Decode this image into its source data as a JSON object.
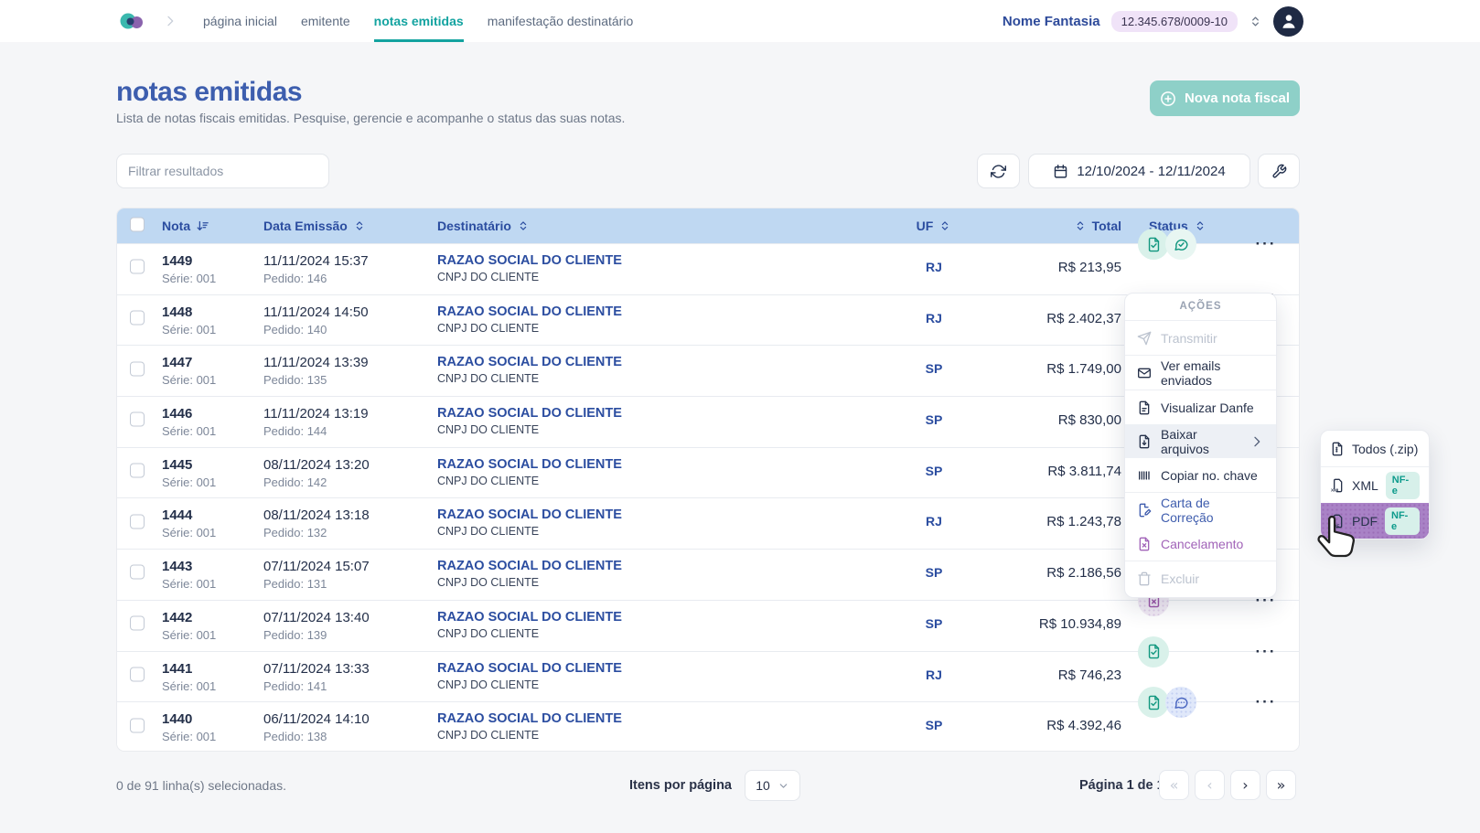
{
  "colors": {
    "accent_teal": "#13a3a0",
    "brand_blue": "#3d5eae",
    "header_blue_bg": "#bfd8f2",
    "status_teal": "#11977f",
    "status_purple": "#9c55a8",
    "submenu_highlight": "#a982c6",
    "new_button_bg": "#8ed0c8"
  },
  "navbar": {
    "links": [
      {
        "label": "página inicial",
        "active": false
      },
      {
        "label": "emitente",
        "active": false
      },
      {
        "label": "notas emitidas",
        "active": true
      },
      {
        "label": "manifestação destinatário",
        "active": false
      }
    ],
    "company_name": "Nome Fantasia",
    "company_cnpj": "12.345.678/0009-10"
  },
  "page": {
    "title": "notas emitidas",
    "subtitle": "Lista de notas fiscais emitidas. Pesquise, gerencie e acompanhe o status das suas notas.",
    "new_button_label": "Nova nota fiscal"
  },
  "toolbar": {
    "filter_placeholder": "Filtrar resultados",
    "date_range": "12/10/2024 - 12/11/2024"
  },
  "table": {
    "columns": {
      "nota": "Nota",
      "data_emissao": "Data Emissão",
      "destinatario": "Destinatário",
      "uf": "UF",
      "total": "Total",
      "status": "Status"
    },
    "rows": [
      {
        "nota": "1449",
        "serie": "Série: 001",
        "data": "11/11/2024 15:37",
        "pedido": "Pedido: 146",
        "destinatario": "RAZAO SOCIAL DO CLIENTE",
        "cnpj": "CNPJ DO CLIENTE",
        "uf": "RJ",
        "total": "R$ 213,95",
        "status_icons": [
          {
            "icon": "doc-check",
            "variant": "teal"
          },
          {
            "icon": "chat-check",
            "variant": "teal-light"
          }
        ]
      },
      {
        "nota": "1448",
        "serie": "Série: 001",
        "data": "11/11/2024 14:50",
        "pedido": "Pedido: 140",
        "destinatario": "RAZAO SOCIAL DO CLIENTE",
        "cnpj": "CNPJ DO CLIENTE",
        "uf": "RJ",
        "total": "R$ 2.402,37",
        "status_icons": []
      },
      {
        "nota": "1447",
        "serie": "Série: 001",
        "data": "11/11/2024 13:39",
        "pedido": "Pedido: 135",
        "destinatario": "RAZAO SOCIAL DO CLIENTE",
        "cnpj": "CNPJ DO CLIENTE",
        "uf": "SP",
        "total": "R$ 1.749,00",
        "status_icons": []
      },
      {
        "nota": "1446",
        "serie": "Série: 001",
        "data": "11/11/2024 13:19",
        "pedido": "Pedido: 144",
        "destinatario": "RAZAO SOCIAL DO CLIENTE",
        "cnpj": "CNPJ DO CLIENTE",
        "uf": "SP",
        "total": "R$ 830,00",
        "status_icons": []
      },
      {
        "nota": "1445",
        "serie": "Série: 001",
        "data": "08/11/2024 13:20",
        "pedido": "Pedido: 142",
        "destinatario": "RAZAO SOCIAL DO CLIENTE",
        "cnpj": "CNPJ DO CLIENTE",
        "uf": "SP",
        "total": "R$ 3.811,74",
        "status_icons": []
      },
      {
        "nota": "1444",
        "serie": "Série: 001",
        "data": "08/11/2024 13:18",
        "pedido": "Pedido: 132",
        "destinatario": "RAZAO SOCIAL DO CLIENTE",
        "cnpj": "CNPJ DO CLIENTE",
        "uf": "RJ",
        "total": "R$ 1.243,78",
        "status_icons": []
      },
      {
        "nota": "1443",
        "serie": "Série: 001",
        "data": "07/11/2024 15:07",
        "pedido": "Pedido: 131",
        "destinatario": "RAZAO SOCIAL DO CLIENTE",
        "cnpj": "CNPJ DO CLIENTE",
        "uf": "SP",
        "total": "R$ 2.186,56",
        "status_icons": []
      },
      {
        "nota": "1442",
        "serie": "Série: 001",
        "data": "07/11/2024 13:40",
        "pedido": "Pedido: 139",
        "destinatario": "RAZAO SOCIAL DO CLIENTE",
        "cnpj": "CNPJ DO CLIENTE",
        "uf": "SP",
        "total": "R$ 10.934,89",
        "status_icons": [
          {
            "icon": "doc-x",
            "variant": "purple"
          }
        ]
      },
      {
        "nota": "1441",
        "serie": "Série: 001",
        "data": "07/11/2024 13:33",
        "pedido": "Pedido: 141",
        "destinatario": "RAZAO SOCIAL DO CLIENTE",
        "cnpj": "CNPJ DO CLIENTE",
        "uf": "RJ",
        "total": "R$ 746,23",
        "status_icons": [
          {
            "icon": "doc-check",
            "variant": "teal"
          }
        ]
      },
      {
        "nota": "1440",
        "serie": "Série: 001",
        "data": "06/11/2024 14:10",
        "pedido": "Pedido: 138",
        "destinatario": "RAZAO SOCIAL DO CLIENTE",
        "cnpj": "CNPJ DO CLIENTE",
        "uf": "SP",
        "total": "R$ 4.392,46",
        "status_icons": [
          {
            "icon": "doc-check",
            "variant": "teal"
          },
          {
            "icon": "chat-dots",
            "variant": "blue"
          }
        ]
      }
    ],
    "row_actions_label": "···"
  },
  "actions_menu": {
    "title": "AÇÕES",
    "items": [
      {
        "label": "Transmitir",
        "disabled": true
      },
      {
        "label": "Ver emails enviados",
        "disabled": false
      },
      {
        "label": "Visualizar Danfe",
        "disabled": false
      },
      {
        "label": "Baixar arquivos",
        "disabled": false,
        "has_submenu": true
      },
      {
        "label": "Copiar no. chave",
        "disabled": false
      },
      {
        "label": "Carta de Correção",
        "disabled": false
      },
      {
        "label": "Cancelamento",
        "disabled": false
      },
      {
        "label": "Excluir",
        "disabled": true
      }
    ]
  },
  "submenu": {
    "items": [
      {
        "label": "Todos (.zip)",
        "badge": ""
      },
      {
        "label": "XML",
        "badge": "NF-e"
      },
      {
        "label": "PDF",
        "badge": "NF-e",
        "highlighted": true
      }
    ]
  },
  "footer": {
    "selection_text": "0 de 91 linha(s) selecionadas.",
    "items_per_page_label": "Itens por página",
    "items_per_page_value": "10",
    "page_indicator": "Página 1 de 10",
    "pager": {
      "first": "«",
      "prev": "‹",
      "next": "›",
      "last": "»"
    }
  }
}
